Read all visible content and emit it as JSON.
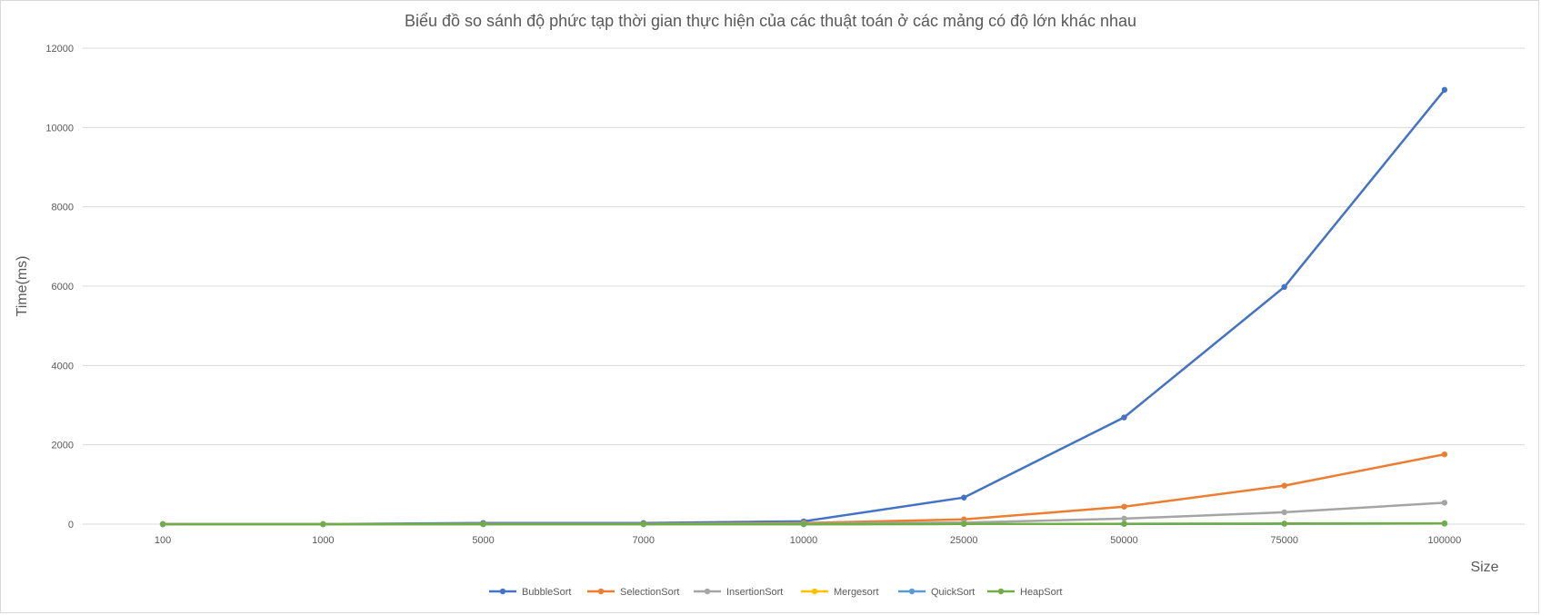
{
  "chart_data": {
    "type": "line",
    "title": "Biểu đồ so sánh độ phức tạp thời gian thực hiện của các thuật toán ở các mảng có độ lớn khác nhau",
    "xlabel": "Size",
    "ylabel": "Time(ms)",
    "categories": [
      "100",
      "1000",
      "5000",
      "7000",
      "10000",
      "25000",
      "50000",
      "75000",
      "100000"
    ],
    "ylim": [
      0,
      12000
    ],
    "yticks": [
      0,
      2000,
      4000,
      6000,
      8000,
      10000,
      12000
    ],
    "grid": true,
    "legend_position": "bottom",
    "series": [
      {
        "name": "BubbleSort",
        "color": "#4472C4",
        "values": [
          0,
          0,
          30,
          30,
          70,
          670,
          2690,
          5980,
          10950
        ]
      },
      {
        "name": "SelectionSort",
        "color": "#ED7D31",
        "values": [
          0,
          0,
          10,
          10,
          30,
          120,
          440,
          970,
          1760
        ]
      },
      {
        "name": "InsertionSort",
        "color": "#A5A5A5",
        "values": [
          0,
          0,
          5,
          5,
          15,
          40,
          140,
          300,
          540
        ]
      },
      {
        "name": "Mergesort",
        "color": "#FFC000",
        "values": [
          0,
          0,
          0,
          0,
          0,
          5,
          5,
          10,
          15
        ]
      },
      {
        "name": "QuickSort",
        "color": "#5B9BD5",
        "values": [
          0,
          0,
          0,
          0,
          0,
          5,
          5,
          10,
          15
        ]
      },
      {
        "name": "HeapSort",
        "color": "#70AD47",
        "values": [
          0,
          0,
          0,
          0,
          0,
          5,
          10,
          15,
          20
        ]
      }
    ]
  }
}
